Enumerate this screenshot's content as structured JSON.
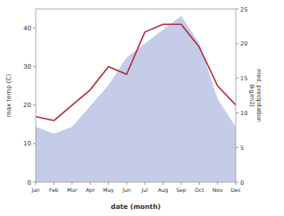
{
  "chart_data": {
    "type": "line",
    "categories": [
      "Jan",
      "Feb",
      "Mar",
      "Apr",
      "May",
      "Jun",
      "Jul",
      "Aug",
      "Sep",
      "Oct",
      "Nov",
      "Dec"
    ],
    "series": [
      {
        "type": "area",
        "color": "#c5cce8",
        "axis": "y2",
        "values": [
          8,
          7,
          8,
          11,
          14,
          18,
          20,
          22,
          24,
          20,
          12,
          8
        ]
      },
      {
        "type": "line",
        "color": "#b03040",
        "values": [
          17,
          16,
          20,
          24,
          30,
          28,
          39,
          41,
          41,
          35,
          25,
          20
        ]
      }
    ],
    "xlabel": "date (month)",
    "ylabel": "max temp (C)",
    "y2label": "med. precipitation\n(kg/m2)",
    "ylim": [
      0,
      45
    ],
    "yticks": [
      0,
      10,
      20,
      30,
      40
    ],
    "y2lim": [
      0,
      25
    ],
    "y2ticks": [
      0,
      5,
      10,
      15,
      20,
      25
    ],
    "grid": false
  }
}
